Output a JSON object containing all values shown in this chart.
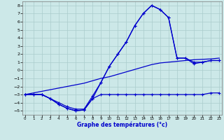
{
  "title": "Graphe des températures (°c)",
  "bg_color": "#cce8e8",
  "grid_color": "#aacccc",
  "line_color": "#0000cc",
  "xlim": [
    0,
    23
  ],
  "ylim": [
    -5.5,
    8.5
  ],
  "yticks": [
    -5,
    -4,
    -3,
    -2,
    -1,
    0,
    1,
    2,
    3,
    4,
    5,
    6,
    7,
    8
  ],
  "xticks": [
    0,
    1,
    2,
    3,
    4,
    5,
    6,
    7,
    8,
    9,
    10,
    11,
    12,
    13,
    14,
    15,
    16,
    17,
    18,
    19,
    20,
    21,
    22,
    23
  ],
  "hours": [
    0,
    1,
    2,
    3,
    4,
    5,
    6,
    7,
    8,
    9,
    10,
    11,
    12,
    13,
    14,
    15,
    16,
    17,
    18,
    19,
    20,
    21,
    22,
    23
  ],
  "temp_main": [
    -3.0,
    -3.0,
    -3.0,
    -3.5,
    -4.2,
    -4.7,
    -5.0,
    -4.9,
    -3.5,
    -1.5,
    0.5,
    2.0,
    3.5,
    5.5,
    7.0,
    8.0,
    7.5,
    6.5,
    1.5,
    1.5,
    0.8,
    1.0,
    1.2,
    1.2
  ],
  "temp_min": [
    -3.0,
    -3.0,
    -3.0,
    -3.5,
    -4.2,
    -4.7,
    -5.0,
    -4.9,
    -3.5,
    -3.0,
    -3.0,
    -3.0,
    -3.0,
    -3.0,
    -3.0,
    -3.0,
    -3.0,
    -3.0,
    -3.0,
    -3.0,
    -3.0,
    -3.0,
    -2.8,
    -2.8
  ],
  "temp_max": [
    -3.0,
    -3.0,
    -3.0,
    -3.5,
    -4.0,
    -4.5,
    -4.8,
    -4.8,
    -3.2,
    -1.5,
    0.5,
    2.0,
    3.5,
    5.5,
    7.0,
    8.0,
    7.5,
    6.5,
    1.5,
    1.5,
    1.0,
    1.0,
    1.2,
    1.2
  ],
  "temp_lin": [
    -3.0,
    -2.8,
    -2.6,
    -2.4,
    -2.2,
    -2.0,
    -1.8,
    -1.6,
    -1.3,
    -1.0,
    -0.8,
    -0.5,
    -0.2,
    0.1,
    0.4,
    0.7,
    0.9,
    1.0,
    1.1,
    1.2,
    1.3,
    1.35,
    1.4,
    1.5
  ]
}
